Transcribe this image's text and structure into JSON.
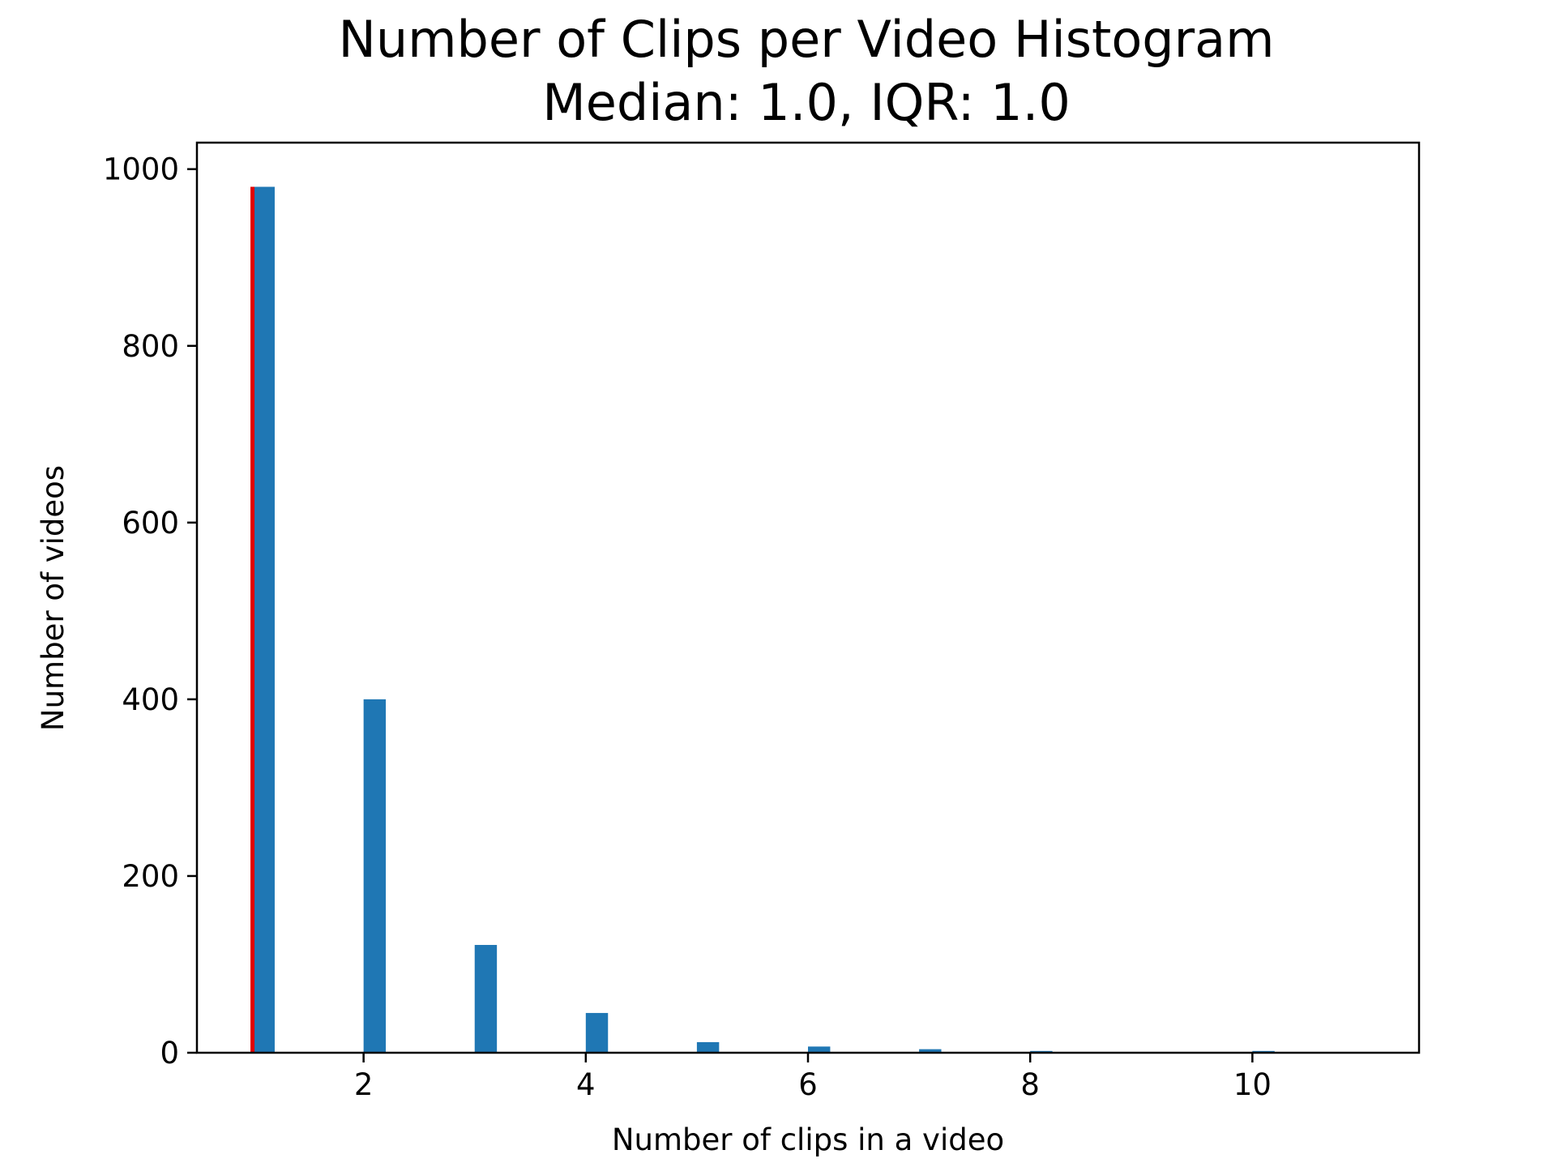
{
  "chart_data": {
    "type": "bar",
    "title": "Number of Clips per Video Histogram",
    "subtitle": "Median: 1.0, IQR: 1.0",
    "xlabel": "Number of clips in a video",
    "ylabel": "Number of videos",
    "xlim": [
      0.5,
      11.5
    ],
    "ylim": [
      0,
      1030
    ],
    "x_ticks": [
      2,
      4,
      6,
      8,
      10
    ],
    "y_ticks": [
      0,
      200,
      400,
      600,
      800,
      1000
    ],
    "grid": false,
    "bar_width": 0.2,
    "bar_color": "#1f77b4",
    "bins": [
      {
        "x": 1.1,
        "count": 980
      },
      {
        "x": 2.1,
        "count": 400
      },
      {
        "x": 3.1,
        "count": 122
      },
      {
        "x": 4.1,
        "count": 45
      },
      {
        "x": 5.1,
        "count": 12
      },
      {
        "x": 6.1,
        "count": 7
      },
      {
        "x": 7.1,
        "count": 4
      },
      {
        "x": 8.1,
        "count": 2
      },
      {
        "x": 10.1,
        "count": 2
      }
    ],
    "median_line": {
      "x": 1.0,
      "height": 980,
      "color": "#e00000"
    }
  }
}
